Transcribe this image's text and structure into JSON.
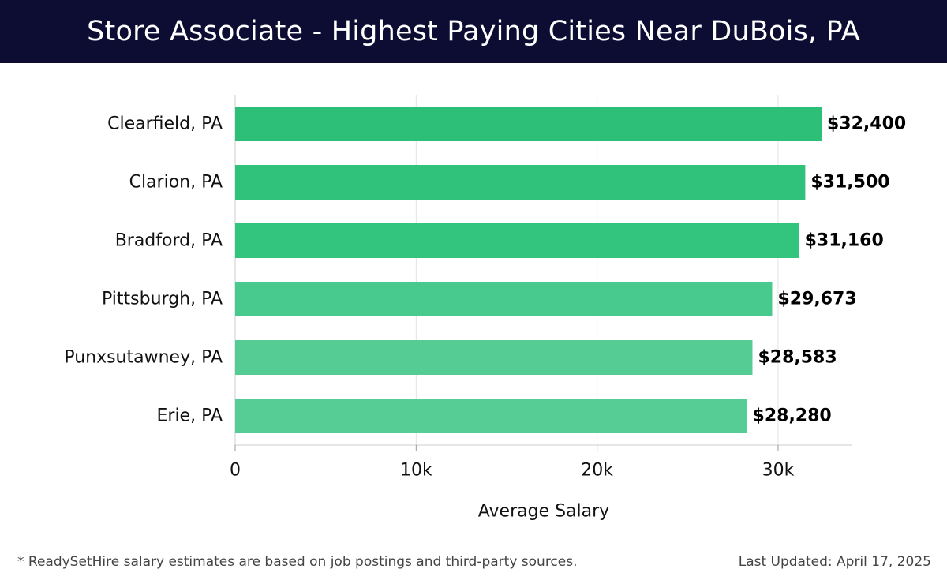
{
  "header": {
    "title": "Store Associate - Highest Paying Cities Near DuBois, PA"
  },
  "chart_data": {
    "type": "bar",
    "orientation": "horizontal",
    "categories": [
      "Clearfield, PA",
      "Clarion, PA",
      "Bradford, PA",
      "Pittsburgh, PA",
      "Punxsutawney, PA",
      "Erie, PA"
    ],
    "values": [
      32400,
      31500,
      31160,
      29673,
      28583,
      28280
    ],
    "value_labels": [
      "$32,400",
      "$31,500",
      "$31,160",
      "$29,673",
      "$28,583",
      "$28,280"
    ],
    "bar_colors": [
      "#2dbf78",
      "#30c27b",
      "#33c47e",
      "#48c98d",
      "#54cc94",
      "#55cd95"
    ],
    "xlabel": "Average Salary",
    "xlim": [
      0,
      34100
    ],
    "xticks": [
      0,
      10000,
      20000,
      30000
    ],
    "xtick_labels": [
      "0",
      "10k",
      "20k",
      "30k"
    ],
    "grid": true
  },
  "footer": {
    "note": "* ReadySetHire salary estimates are based on job postings and third-party sources.",
    "updated": "Last Updated: April 17, 2025"
  }
}
